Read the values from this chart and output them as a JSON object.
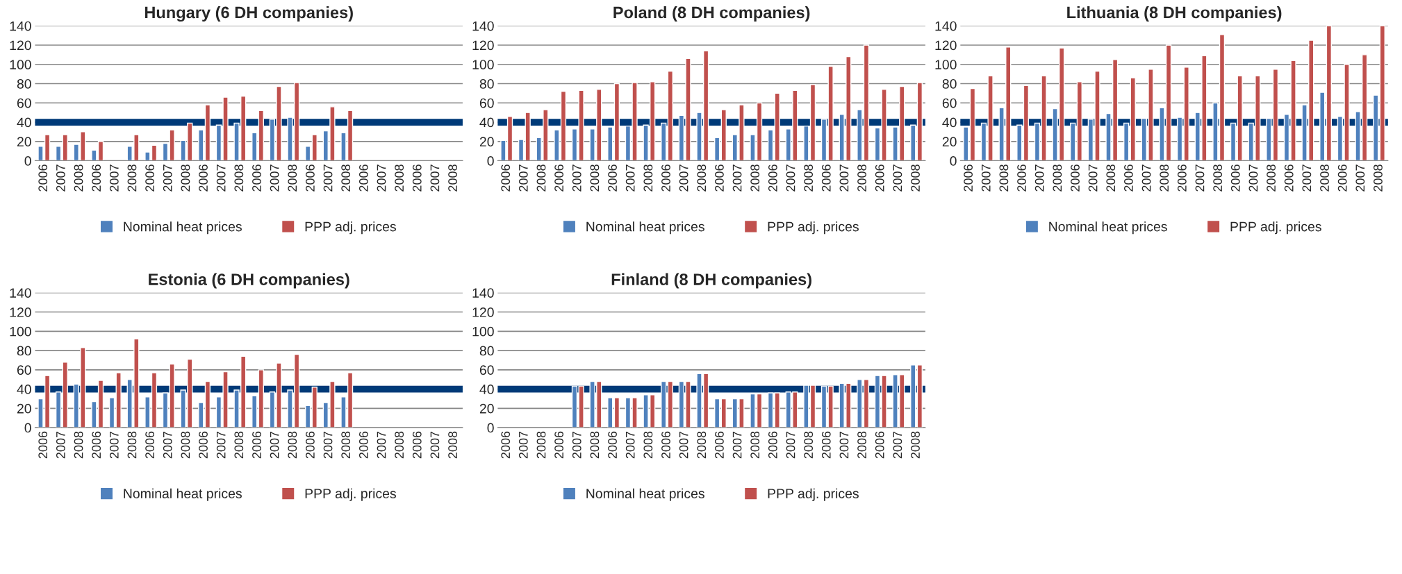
{
  "chart_data": [
    {
      "type": "bar",
      "title": "Hungary (6 DH companies)",
      "categories": [
        "2006",
        "2007",
        "2008",
        "2006",
        "2007",
        "2008",
        "2006",
        "2007",
        "2008",
        "2006",
        "2007",
        "2008",
        "2006",
        "2007",
        "2008",
        "2006",
        "2007",
        "2008",
        "2006",
        "2007",
        "2008",
        "2006",
        "2007",
        "2008"
      ],
      "series": [
        {
          "name": "Nominal heat prices",
          "color": "#4f81bd",
          "values": [
            15,
            15,
            17,
            11,
            null,
            15,
            9,
            18,
            21,
            32,
            37,
            39,
            29,
            43,
            45,
            15,
            31,
            29,
            null,
            null,
            null,
            null,
            null,
            null
          ]
        },
        {
          "name": "PPP adj. prices",
          "color": "#c0504d",
          "values": [
            27,
            27,
            30,
            20,
            null,
            27,
            16,
            32,
            39,
            58,
            66,
            67,
            52,
            77,
            81,
            27,
            56,
            52,
            null,
            null,
            null,
            null,
            null,
            null
          ]
        }
      ],
      "ylim": [
        0,
        140
      ],
      "yticks": [
        0,
        20,
        40,
        60,
        80,
        100,
        120,
        140
      ],
      "grid": "y",
      "legend": "bottom",
      "ref_lines": [
        {
          "axis": "y",
          "value": 40,
          "color": "#003a78"
        }
      ]
    },
    {
      "type": "bar",
      "title": "Poland (8 DH companies)",
      "categories": [
        "2006",
        "2007",
        "2008",
        "2006",
        "2007",
        "2008",
        "2006",
        "2007",
        "2008",
        "2006",
        "2007",
        "2008",
        "2006",
        "2007",
        "2008",
        "2006",
        "2007",
        "2008",
        "2006",
        "2007",
        "2008",
        "2006",
        "2007",
        "2008"
      ],
      "series": [
        {
          "name": "Nominal heat prices",
          "color": "#4f81bd",
          "values": [
            21,
            22,
            24,
            32,
            33,
            33,
            35,
            36,
            37,
            39,
            47,
            50,
            24,
            27,
            27,
            32,
            33,
            36,
            43,
            48,
            53,
            34,
            35,
            37
          ]
        },
        {
          "name": "PPP adj. prices",
          "color": "#c0504d",
          "values": [
            46,
            50,
            53,
            72,
            73,
            74,
            80,
            81,
            82,
            93,
            106,
            114,
            53,
            58,
            60,
            70,
            73,
            79,
            98,
            108,
            120,
            74,
            77,
            81
          ]
        }
      ],
      "ylim": [
        0,
        140
      ],
      "yticks": [
        0,
        20,
        40,
        60,
        80,
        100,
        120,
        140
      ],
      "grid": "y",
      "legend": "bottom",
      "ref_lines": [
        {
          "axis": "y",
          "value": 40,
          "color": "#003a78"
        }
      ]
    },
    {
      "type": "bar",
      "title": "Lithuania (8 DH companies)",
      "categories": [
        "2006",
        "2007",
        "2008",
        "2006",
        "2007",
        "2008",
        "2006",
        "2007",
        "2008",
        "2006",
        "2007",
        "2008",
        "2006",
        "2007",
        "2008",
        "2006",
        "2007",
        "2008",
        "2006",
        "2007",
        "2008",
        "2006",
        "2007",
        "2008"
      ],
      "series": [
        {
          "name": "Nominal heat prices",
          "color": "#4f81bd",
          "values": [
            35,
            39,
            55,
            37,
            39,
            54,
            39,
            43,
            49,
            39,
            44,
            55,
            45,
            50,
            60,
            39,
            39,
            44,
            48,
            58,
            71,
            46,
            51,
            68
          ]
        },
        {
          "name": "PPP adj. prices",
          "color": "#c0504d",
          "values": [
            75,
            88,
            118,
            78,
            88,
            117,
            82,
            93,
            105,
            86,
            95,
            120,
            97,
            109,
            131,
            88,
            88,
            95,
            104,
            125,
            140,
            100,
            110,
            140
          ]
        }
      ],
      "ylim": [
        0,
        140
      ],
      "yticks": [
        0,
        20,
        40,
        60,
        80,
        100,
        120,
        140
      ],
      "grid": "y",
      "legend": "bottom",
      "ref_lines": [
        {
          "axis": "y",
          "value": 40,
          "color": "#003a78"
        }
      ]
    },
    {
      "type": "bar",
      "title": "Estonia (6 DH companies)",
      "categories": [
        "2006",
        "2007",
        "2008",
        "2006",
        "2007",
        "2008",
        "2006",
        "2007",
        "2008",
        "2006",
        "2007",
        "2008",
        "2006",
        "2007",
        "2008",
        "2006",
        "2007",
        "2008",
        "2006",
        "2007",
        "2008",
        "2006",
        "2007",
        "2008"
      ],
      "series": [
        {
          "name": "Nominal heat prices",
          "color": "#4f81bd",
          "values": [
            30,
            37,
            45,
            27,
            31,
            50,
            32,
            36,
            39,
            26,
            32,
            39,
            33,
            37,
            39,
            23,
            26,
            32,
            null,
            null,
            null,
            null,
            null,
            null
          ]
        },
        {
          "name": "PPP adj. prices",
          "color": "#c0504d",
          "values": [
            54,
            68,
            83,
            49,
            57,
            92,
            57,
            66,
            71,
            48,
            58,
            74,
            60,
            67,
            76,
            42,
            48,
            57,
            null,
            null,
            null,
            null,
            null,
            null
          ]
        }
      ],
      "ylim": [
        0,
        140
      ],
      "yticks": [
        0,
        20,
        40,
        60,
        80,
        100,
        120,
        140
      ],
      "grid": "y",
      "legend": "bottom",
      "ref_lines": [
        {
          "axis": "y",
          "value": 40,
          "color": "#003a78"
        }
      ]
    },
    {
      "type": "bar",
      "title": "Finland (8 DH companies)",
      "categories": [
        "2006",
        "2007",
        "2008",
        "2006",
        "2007",
        "2008",
        "2006",
        "2007",
        "2008",
        "2006",
        "2007",
        "2008",
        "2006",
        "2007",
        "2008",
        "2006",
        "2007",
        "2008",
        "2006",
        "2007",
        "2008",
        "2006",
        "2007",
        "2008"
      ],
      "series": [
        {
          "name": "Nominal heat prices",
          "color": "#4f81bd",
          "values": [
            null,
            null,
            null,
            null,
            43,
            48,
            31,
            31,
            34,
            48,
            48,
            56,
            30,
            30,
            35,
            36,
            37,
            44,
            43,
            46,
            50,
            54,
            55,
            65
          ]
        },
        {
          "name": "PPP adj. prices",
          "color": "#c0504d",
          "values": [
            null,
            null,
            null,
            null,
            43,
            48,
            31,
            31,
            34,
            48,
            48,
            56,
            30,
            30,
            35,
            36,
            37,
            44,
            43,
            46,
            50,
            54,
            55,
            65
          ]
        }
      ],
      "ylim": [
        0,
        140
      ],
      "yticks": [
        0,
        20,
        40,
        60,
        80,
        100,
        120,
        140
      ],
      "grid": "y",
      "legend": "bottom",
      "ref_lines": [
        {
          "axis": "y",
          "value": 40,
          "color": "#003a78"
        }
      ]
    }
  ]
}
